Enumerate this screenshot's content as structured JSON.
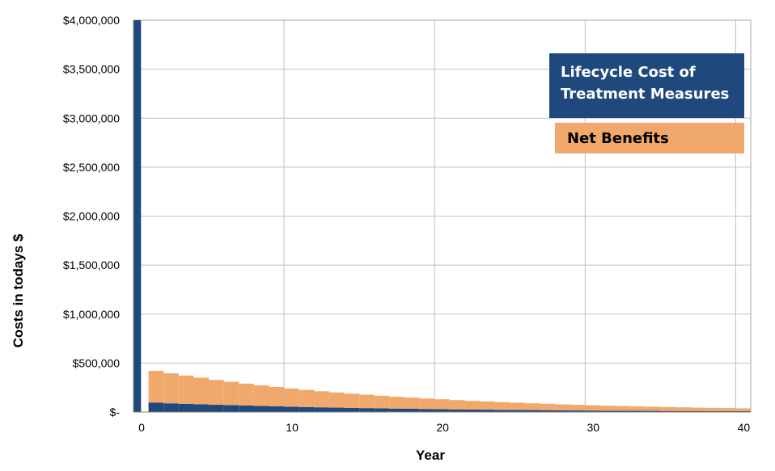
{
  "chart_data": {
    "type": "bar",
    "title": "",
    "xlabel": "Year",
    "ylabel": "Costs in todays $",
    "xlim": [
      0,
      41
    ],
    "ylim": [
      0,
      4000000
    ],
    "xticks": [
      0,
      10,
      20,
      30,
      40
    ],
    "xtick_labels": [
      "0",
      "10",
      "20",
      "30",
      "40"
    ],
    "yticks": [
      0,
      500000,
      1000000,
      1500000,
      2000000,
      2500000,
      3000000,
      3500000,
      4000000
    ],
    "ytick_labels": [
      "$-",
      "$500,000",
      "$1,000,000",
      "$1,500,000",
      "$2,000,000",
      "$2,500,000",
      "$3,000,000",
      "$3,500,000",
      "$4,000,000"
    ],
    "grid": true,
    "legend_position": "top-right",
    "stacked": true,
    "x": [
      0,
      1,
      2,
      3,
      4,
      5,
      6,
      7,
      8,
      9,
      10,
      11,
      12,
      13,
      14,
      15,
      16,
      17,
      18,
      19,
      20,
      21,
      22,
      23,
      24,
      25,
      26,
      27,
      28,
      29,
      30,
      31,
      32,
      33,
      34,
      35,
      36,
      37,
      38,
      39,
      40
    ],
    "series": [
      {
        "name": "Lifecycle Cost of Treatment Measures",
        "color": "#1f497d",
        "values": [
          4000000,
          95000,
          89000,
          84000,
          79000,
          74000,
          70000,
          66000,
          62000,
          58000,
          54000,
          51000,
          48000,
          45000,
          42000,
          40000,
          37000,
          35000,
          33000,
          31000,
          29000,
          27000,
          25000,
          24000,
          22000,
          21000,
          20000,
          19000,
          17000,
          16000,
          15000,
          14000,
          13000,
          12500,
          12000,
          11000,
          10500,
          10000,
          9500,
          9000,
          8500
        ]
      },
      {
        "name": "Net Benefits",
        "color": "#f0a86c",
        "values": [
          0,
          325000,
          306000,
          288000,
          271000,
          254000,
          239000,
          224000,
          211000,
          198000,
          186000,
          175000,
          164000,
          155000,
          146000,
          137000,
          129000,
          121000,
          114000,
          107000,
          101000,
          95000,
          89000,
          84000,
          79000,
          74000,
          69000,
          65000,
          61000,
          58000,
          54000,
          51000,
          48000,
          45000,
          42000,
          40000,
          37500,
          35000,
          33000,
          31000,
          29000
        ]
      }
    ]
  },
  "legend": {
    "cost_label": "Lifecycle Cost of Treatment Measures",
    "benefit_label": "Net Benefits"
  }
}
